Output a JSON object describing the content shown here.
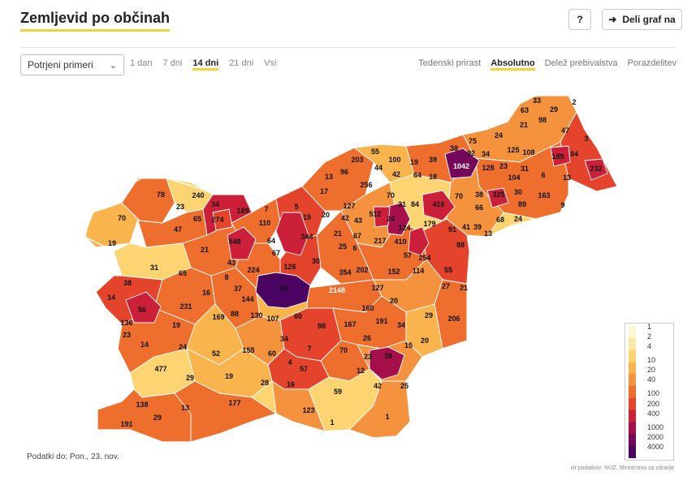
{
  "header": {
    "title": "Zemljevid po občinah",
    "help_label": "?",
    "share_label": "Deli graf na"
  },
  "controls": {
    "metric_select": "Potrjeni primeri",
    "ranges": [
      "1 dan",
      "7 dni",
      "14 dni",
      "21 dni",
      "Vsi"
    ],
    "active_range": "14 dni",
    "modes": [
      "Tedenski prirast",
      "Absolutno",
      "Delež prebivalstva",
      "Porazdelitev"
    ],
    "active_mode": "Absolutno"
  },
  "map": {
    "outline_color": "#ffffff",
    "labels": [
      "33",
      "2",
      "63",
      "29",
      "21",
      "98",
      "47",
      "3",
      "24",
      "75",
      "38",
      "92",
      "34",
      "125",
      "108",
      "189",
      "84",
      "55",
      "203",
      "100",
      "19",
      "39",
      "1042",
      "128",
      "23",
      "31",
      "232",
      "96",
      "44",
      "13",
      "42",
      "64",
      "18",
      "104",
      "6",
      "13",
      "256",
      "70",
      "84",
      "416",
      "70",
      "38",
      "325",
      "30",
      "163",
      "78",
      "240",
      "34",
      "189",
      "7",
      "5",
      "17",
      "127",
      "512",
      "31",
      "24",
      "66",
      "89",
      "9",
      "23",
      "65",
      "274",
      "15",
      "20",
      "42",
      "43",
      "124",
      "179",
      "91",
      "41",
      "39",
      "68",
      "24",
      "70",
      "110",
      "344",
      "21",
      "67",
      "217",
      "410",
      "88",
      "13",
      "47",
      "548",
      "64",
      "25",
      "6",
      "57",
      "254",
      "19",
      "21",
      "67",
      "30",
      "55",
      "31",
      "43",
      "224",
      "126",
      "354",
      "202",
      "152",
      "114",
      "8",
      "65",
      "38",
      "16",
      "37",
      "65",
      "2148",
      "127",
      "27",
      "21",
      "14",
      "56",
      "231",
      "144",
      "20",
      "169",
      "88",
      "130",
      "107",
      "60",
      "160",
      "29",
      "206",
      "136",
      "19",
      "98",
      "167",
      "191",
      "34",
      "23",
      "14",
      "24",
      "34",
      "26",
      "20",
      "15",
      "52",
      "155",
      "60",
      "4",
      "7",
      "23",
      "38",
      "477",
      "70",
      "57",
      "29",
      "19",
      "28",
      "16",
      "12",
      "42",
      "25",
      "59",
      "177",
      "138",
      "13",
      "29",
      "191",
      "123",
      "1",
      "1",
      "88"
    ],
    "scale_colors": [
      "#fff6d5",
      "#fde9a6",
      "#fcd471",
      "#f9b44d",
      "#f5923d",
      "#ee6e2d",
      "#e3442b",
      "#cc1f3a",
      "#a50f4a",
      "#75075a",
      "#4a0360"
    ]
  },
  "legend": {
    "ticks": [
      "1",
      "2",
      "4",
      "10",
      "20",
      "40",
      "100",
      "200",
      "400",
      "1000",
      "2000",
      "4000"
    ]
  },
  "footer": {
    "updated": "Podatki do: Pon., 23. nov.",
    "source": "vir podatkov: NIJZ, Ministrstvo za zdravje"
  }
}
